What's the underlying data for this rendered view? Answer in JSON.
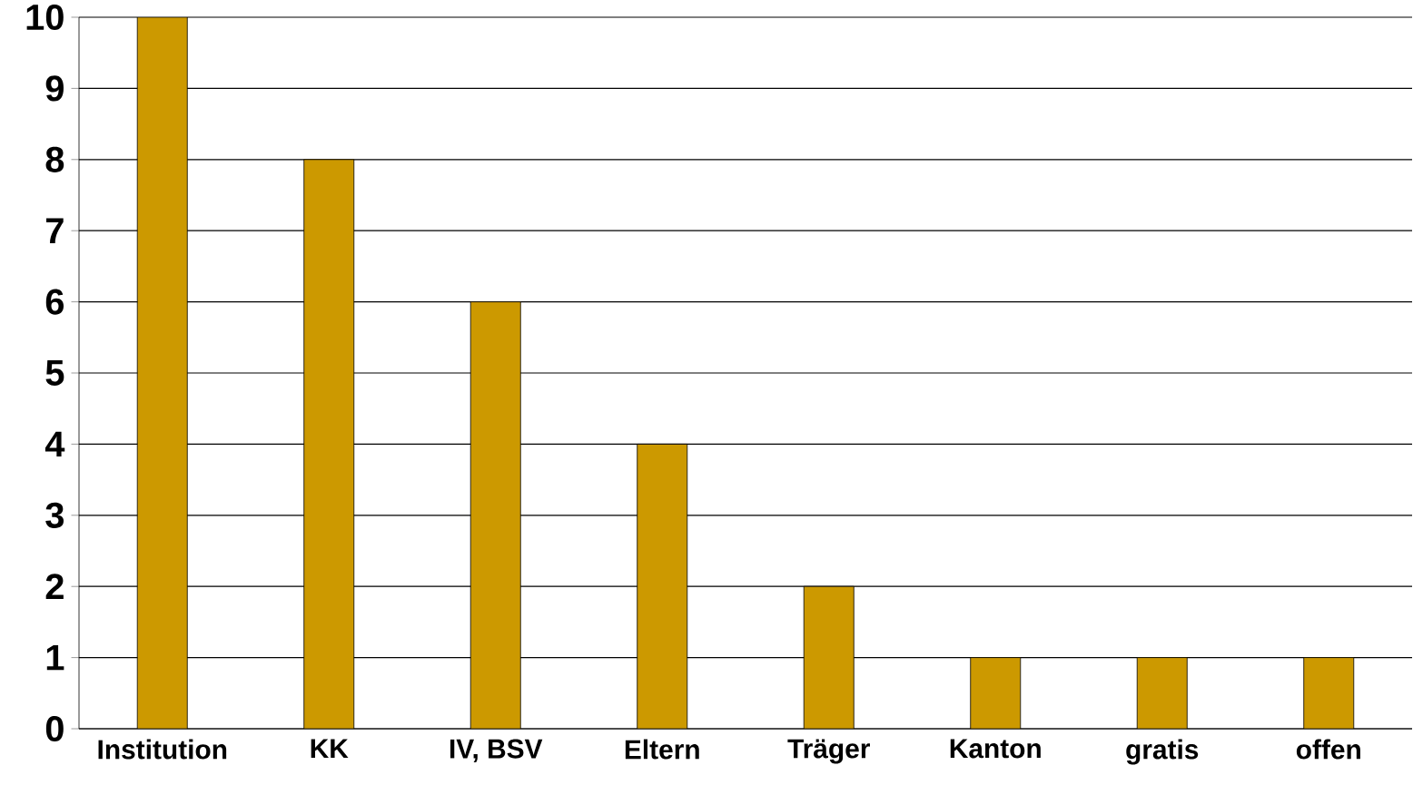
{
  "chart_data": {
    "type": "bar",
    "categories": [
      "Institution",
      "KK",
      "IV, BSV",
      "Eltern",
      "Träger",
      "Kanton",
      "gratis",
      "offen"
    ],
    "values": [
      10,
      8,
      6,
      4,
      2,
      1,
      1,
      1
    ],
    "color": "#cc9900",
    "ylim": [
      0,
      10
    ],
    "yticks": [
      0,
      1,
      2,
      3,
      4,
      5,
      6,
      7,
      8,
      9,
      10
    ],
    "grid": "y"
  }
}
